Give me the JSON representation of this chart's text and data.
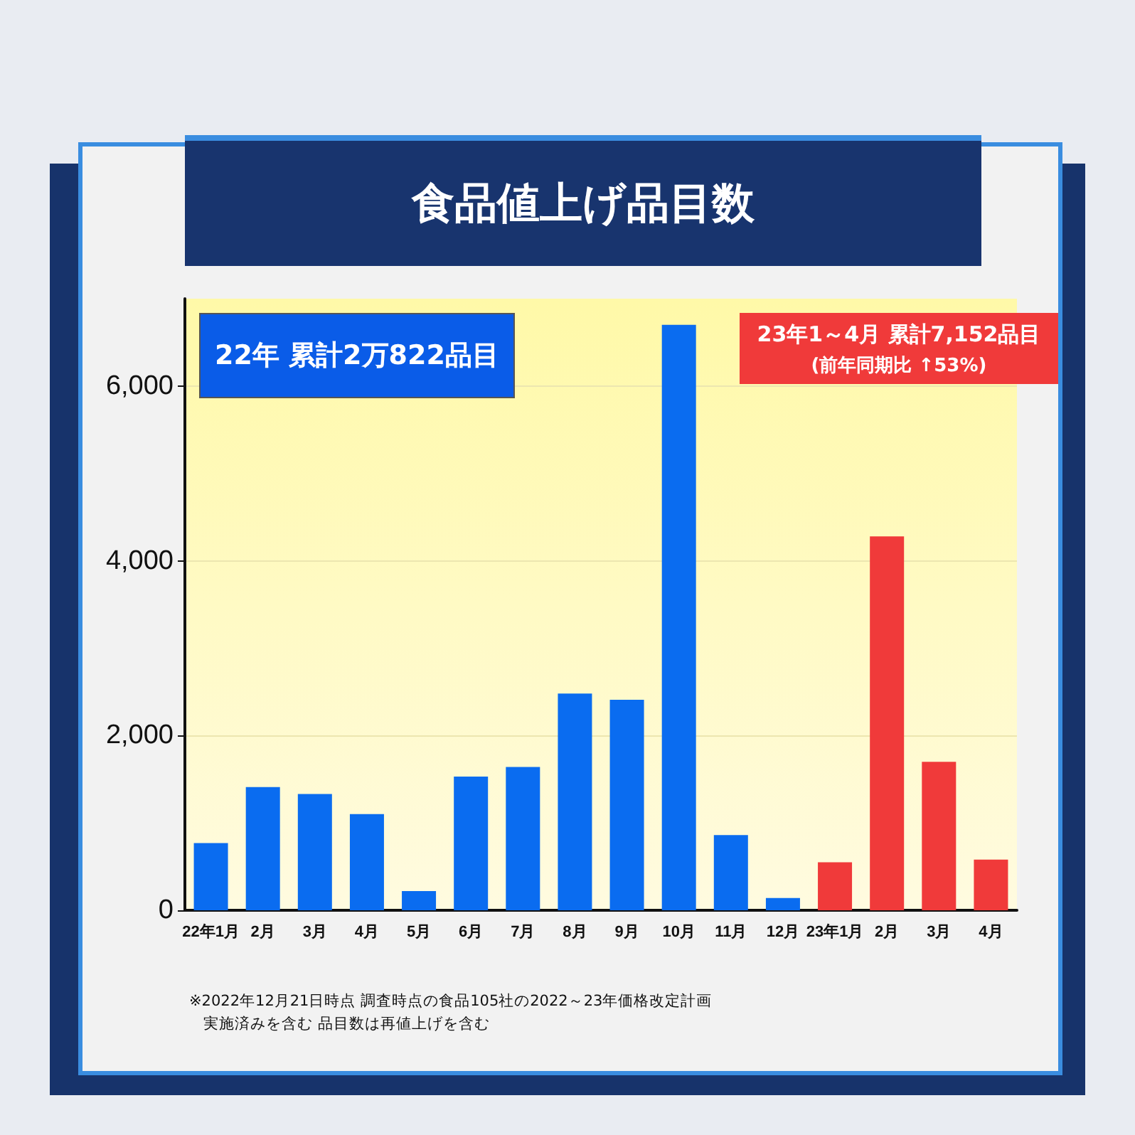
{
  "chart_data": {
    "type": "bar",
    "title": "食品値上げ品目数",
    "categories": [
      "22年1月",
      "2月",
      "3月",
      "4月",
      "5月",
      "6月",
      "7月",
      "8月",
      "9月",
      "10月",
      "11月",
      "12月",
      "23年1月",
      "2月",
      "3月",
      "4月"
    ],
    "values": [
      770,
      1410,
      1330,
      1100,
      220,
      1530,
      1640,
      2480,
      2410,
      6700,
      860,
      140,
      550,
      4280,
      1700,
      580
    ],
    "colors": [
      "#0a6cf0",
      "#0a6cf0",
      "#0a6cf0",
      "#0a6cf0",
      "#0a6cf0",
      "#0a6cf0",
      "#0a6cf0",
      "#0a6cf0",
      "#0a6cf0",
      "#0a6cf0",
      "#0a6cf0",
      "#0a6cf0",
      "#f03a3a",
      "#f03a3a",
      "#f03a3a",
      "#f03a3a"
    ],
    "ylim": [
      0,
      7000
    ],
    "yticks": [
      0,
      {
        "value": 2000,
        "label": "2,000"
      },
      {
        "value": 4000,
        "label": "4,000"
      },
      {
        "value": 6000,
        "label": "6,000"
      }
    ],
    "grid": "y",
    "annotations": [
      "22年 累計2万822品目",
      "23年1～4月 累計7,152品目",
      "(前年同期比 ↑53%)",
      "※2022年12月21日時点 調査時点の食品105社の2022～23年価格改定計画",
      "実施済みを含む 品目数は再値上げを含む"
    ]
  }
}
